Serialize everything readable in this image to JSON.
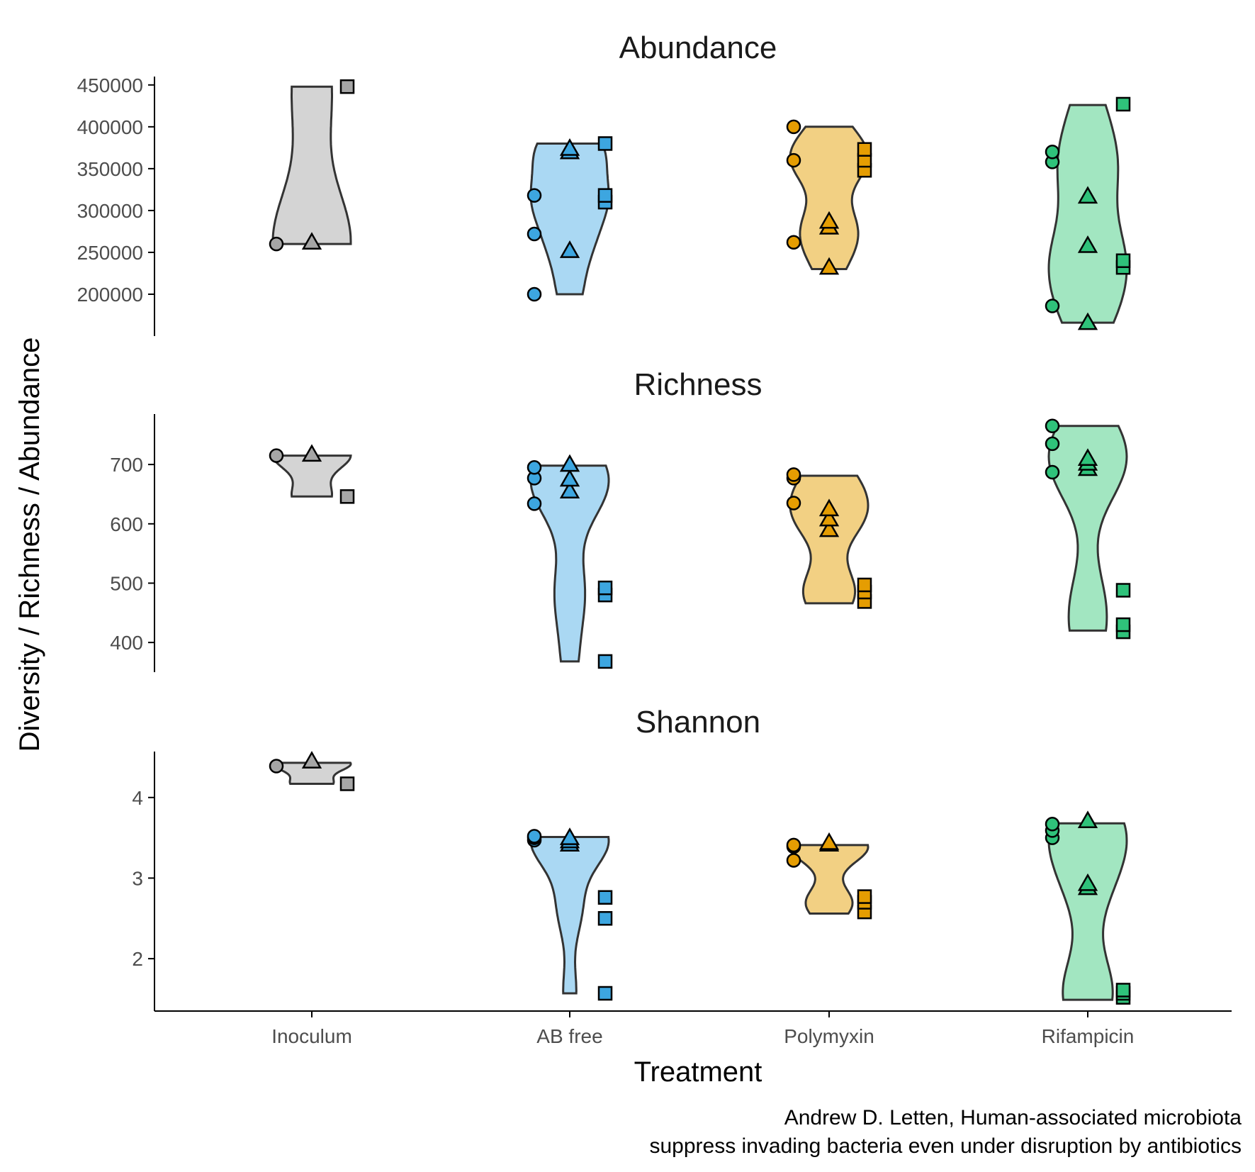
{
  "chart_data": {
    "type": "violin",
    "xlabel": "Treatment",
    "ylabel": "Diversity / Richness / Abundance",
    "caption": [
      "Andrew D. Letten, Human-associated microbiota",
      "suppress invading bacteria even under disruption by antibiotics"
    ],
    "categories": [
      "Inoculum",
      "AB free",
      "Polymyxin",
      "Rifampicin"
    ],
    "fill_colors": {
      "Inoculum": "#d4d4d4",
      "AB free": "#aad8f3",
      "Polymyxin": "#f2d083",
      "Rifampicin": "#a2e6c1"
    },
    "point_colors": {
      "Inoculum": "#a6a6a6",
      "AB free": "#3da6e0",
      "Polymyxin": "#e59d02",
      "Rifampicin": "#2fc27a"
    },
    "point_shapes": [
      "circle",
      "triangle",
      "square"
    ],
    "panels": [
      {
        "title": "Abundance",
        "ylim": [
          150000,
          460000
        ],
        "yticks": [
          200000,
          250000,
          300000,
          350000,
          400000,
          450000
        ],
        "ytick_labels": [
          "200000",
          "250000",
          "300000",
          "350000",
          "400000",
          "450000"
        ],
        "groups": [
          {
            "category": "Inoculum",
            "range": [
              260000,
              448000
            ],
            "circle": [
              260000
            ],
            "triangle": [
              262000
            ],
            "square": [
              448000
            ]
          },
          {
            "category": "AB free",
            "range": [
              200000,
              380000
            ],
            "circle": [
              200000,
              272000,
              318000
            ],
            "triangle": [
              252000,
              370000,
              374000
            ],
            "square": [
              310000,
              318000,
              380000
            ]
          },
          {
            "category": "Polymyxin",
            "range": [
              230000,
              400000
            ],
            "circle": [
              262000,
              360000,
              400000
            ],
            "triangle": [
              232000,
              280000,
              287000
            ],
            "square": [
              348000,
              360000,
              373000
            ]
          },
          {
            "category": "Rifampicin",
            "range": [
              166000,
              426000
            ],
            "circle": [
              186000,
              358000,
              370000
            ],
            "triangle": [
              166000,
              258000,
              317000
            ],
            "square": [
              232000,
              240000,
              427000
            ]
          }
        ]
      },
      {
        "title": "Richness",
        "ylim": [
          350,
          785
        ],
        "yticks": [
          400,
          500,
          600,
          700
        ],
        "ytick_labels": [
          "400",
          "500",
          "600",
          "700"
        ],
        "groups": [
          {
            "category": "Inoculum",
            "range": [
              646,
              715
            ],
            "circle": [
              715
            ],
            "triangle": [
              717
            ],
            "square": [
              646
            ]
          },
          {
            "category": "AB free",
            "range": [
              368,
              698
            ],
            "circle": [
              634,
              677,
              695
            ],
            "triangle": [
              655,
              675,
              700
            ],
            "square": [
              368,
              480,
              492
            ]
          },
          {
            "category": "Polymyxin",
            "range": [
              466,
              681
            ],
            "circle": [
              635,
              677,
              683
            ],
            "triangle": [
              590,
              608,
              625
            ],
            "square": [
              469,
              485,
              497
            ]
          },
          {
            "category": "Rifampicin",
            "range": [
              420,
              765
            ],
            "circle": [
              687,
              735,
              765
            ],
            "triangle": [
              693,
              702,
              710
            ],
            "square": [
              418,
              430,
              488
            ]
          }
        ]
      },
      {
        "title": "Shannon",
        "ylim": [
          1.35,
          4.57
        ],
        "yticks": [
          2,
          3,
          4
        ],
        "ytick_labels": [
          "2",
          "3",
          "4"
        ],
        "groups": [
          {
            "category": "Inoculum",
            "range": [
              4.17,
              4.43
            ],
            "circle": [
              4.39
            ],
            "triangle": [
              4.45
            ],
            "square": [
              4.17
            ]
          },
          {
            "category": "AB free",
            "range": [
              1.57,
              3.51
            ],
            "circle": [
              3.47,
              3.5,
              3.52
            ],
            "triangle": [
              3.42,
              3.46,
              3.5
            ],
            "square": [
              1.57,
              2.5,
              2.76
            ]
          },
          {
            "category": "Polymyxin",
            "range": [
              2.56,
              3.41
            ],
            "circle": [
              3.22,
              3.39,
              3.41
            ],
            "triangle": [
              3.42,
              3.44
            ],
            "square": [
              2.58,
              2.7,
              2.77
            ]
          },
          {
            "category": "Rifampicin",
            "range": [
              1.49,
              3.68
            ],
            "circle": [
              3.5,
              3.59,
              3.67
            ],
            "triangle": [
              2.88,
              2.93,
              3.71
            ],
            "square": [
              1.52,
              1.57,
              1.61
            ]
          }
        ]
      }
    ]
  }
}
